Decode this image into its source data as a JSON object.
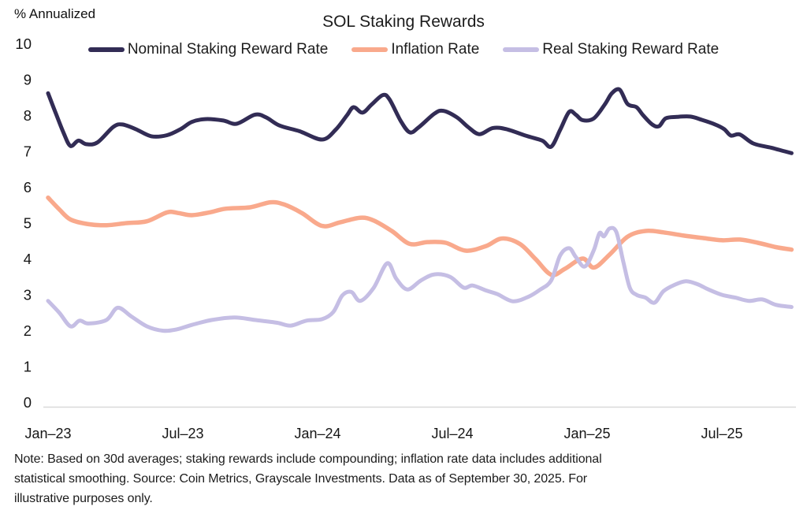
{
  "header": {
    "y_axis_unit": "% Annualized",
    "title": "SOL Staking Rewards"
  },
  "legend": [
    {
      "label": "Nominal Staking Reward Rate",
      "color": "#322C55"
    },
    {
      "label": "Inflation Rate",
      "color": "#F9A98C"
    },
    {
      "label": "Real Staking Reward Rate",
      "color": "#C5BEE4"
    }
  ],
  "chart_data": {
    "type": "line",
    "title": "SOL Staking Rewards",
    "ylabel": "% Annualized",
    "grid": false,
    "legend_position": "top",
    "y_axis": {
      "min": 0,
      "max": 10,
      "tick_step": 1,
      "tick_labels": [
        "0",
        "1",
        "2",
        "3",
        "4",
        "5",
        "6",
        "7",
        "8",
        "9",
        "10"
      ]
    },
    "x_axis": {
      "unit": "months since Jan-2023",
      "range_months": [
        0,
        33.1
      ],
      "tick_months": [
        0,
        6,
        12,
        18,
        24,
        30
      ],
      "tick_labels": [
        "Jan–23",
        "Jul–23",
        "Jan–24",
        "Jul–24",
        "Jan–25",
        "Jul–25"
      ]
    },
    "series": [
      {
        "key": "inflation",
        "name": "Inflation Rate",
        "color": "#F9A98C",
        "stroke_width": 5.5,
        "points": [
          [
            0,
            5.71
          ],
          [
            0.5,
            5.38
          ],
          [
            1,
            5.1
          ],
          [
            1.8,
            4.97
          ],
          [
            2.6,
            4.94
          ],
          [
            3.5,
            5.0
          ],
          [
            4.4,
            5.05
          ],
          [
            5.3,
            5.3
          ],
          [
            5.8,
            5.28
          ],
          [
            6.4,
            5.22
          ],
          [
            7.2,
            5.3
          ],
          [
            7.9,
            5.4
          ],
          [
            9,
            5.44
          ],
          [
            9.9,
            5.58
          ],
          [
            10.5,
            5.52
          ],
          [
            11.3,
            5.28
          ],
          [
            12.2,
            4.92
          ],
          [
            13,
            5.02
          ],
          [
            13.9,
            5.15
          ],
          [
            14.5,
            5.07
          ],
          [
            15.3,
            4.78
          ],
          [
            16.1,
            4.42
          ],
          [
            16.9,
            4.47
          ],
          [
            17.7,
            4.45
          ],
          [
            18.6,
            4.23
          ],
          [
            19.5,
            4.36
          ],
          [
            20.2,
            4.57
          ],
          [
            21,
            4.42
          ],
          [
            21.7,
            4.0
          ],
          [
            22.4,
            3.56
          ],
          [
            23,
            3.72
          ],
          [
            23.8,
            4.01
          ],
          [
            24.3,
            3.76
          ],
          [
            25,
            4.12
          ],
          [
            25.8,
            4.62
          ],
          [
            26.6,
            4.78
          ],
          [
            27.4,
            4.74
          ],
          [
            28.3,
            4.65
          ],
          [
            29.2,
            4.58
          ],
          [
            30,
            4.52
          ],
          [
            30.8,
            4.54
          ],
          [
            31.6,
            4.45
          ],
          [
            32.4,
            4.33
          ],
          [
            33.1,
            4.26
          ]
        ]
      },
      {
        "key": "real",
        "name": "Real Staking Reward Rate",
        "color": "#C5BEE4",
        "stroke_width": 5,
        "points": [
          [
            0,
            2.83
          ],
          [
            0.5,
            2.5
          ],
          [
            1,
            2.12
          ],
          [
            1.4,
            2.28
          ],
          [
            1.8,
            2.2
          ],
          [
            2.6,
            2.3
          ],
          [
            3.1,
            2.64
          ],
          [
            3.7,
            2.4
          ],
          [
            4.4,
            2.12
          ],
          [
            5.1,
            2.0
          ],
          [
            5.7,
            2.03
          ],
          [
            6.4,
            2.16
          ],
          [
            7.3,
            2.3
          ],
          [
            8.3,
            2.37
          ],
          [
            9.2,
            2.3
          ],
          [
            10.2,
            2.22
          ],
          [
            10.8,
            2.14
          ],
          [
            11.5,
            2.28
          ],
          [
            12.2,
            2.32
          ],
          [
            12.7,
            2.52
          ],
          [
            13.1,
            2.98
          ],
          [
            13.5,
            3.08
          ],
          [
            13.9,
            2.83
          ],
          [
            14.5,
            3.2
          ],
          [
            15.1,
            3.88
          ],
          [
            15.5,
            3.45
          ],
          [
            16,
            3.15
          ],
          [
            16.6,
            3.4
          ],
          [
            17.2,
            3.57
          ],
          [
            17.9,
            3.5
          ],
          [
            18.5,
            3.2
          ],
          [
            18.9,
            3.26
          ],
          [
            19.5,
            3.12
          ],
          [
            20,
            3.02
          ],
          [
            20.7,
            2.82
          ],
          [
            21.4,
            2.95
          ],
          [
            21.9,
            3.14
          ],
          [
            22.4,
            3.4
          ],
          [
            22.8,
            4.1
          ],
          [
            23.2,
            4.3
          ],
          [
            23.5,
            4.05
          ],
          [
            23.9,
            3.79
          ],
          [
            24.3,
            4.25
          ],
          [
            24.55,
            4.72
          ],
          [
            24.75,
            4.63
          ],
          [
            25,
            4.85
          ],
          [
            25.3,
            4.75
          ],
          [
            25.6,
            3.95
          ],
          [
            25.9,
            3.2
          ],
          [
            26.2,
            3.0
          ],
          [
            26.6,
            2.92
          ],
          [
            27,
            2.78
          ],
          [
            27.4,
            3.1
          ],
          [
            27.9,
            3.28
          ],
          [
            28.4,
            3.38
          ],
          [
            28.9,
            3.3
          ],
          [
            29.4,
            3.15
          ],
          [
            30,
            3.0
          ],
          [
            30.6,
            2.92
          ],
          [
            31.2,
            2.83
          ],
          [
            31.8,
            2.87
          ],
          [
            32.4,
            2.72
          ],
          [
            33.1,
            2.66
          ]
        ]
      },
      {
        "key": "nominal",
        "name": "Nominal Staking Reward Rate",
        "color": "#322C55",
        "stroke_width": 5,
        "points": [
          [
            0,
            8.62
          ],
          [
            0.35,
            8.05
          ],
          [
            0.7,
            7.5
          ],
          [
            1,
            7.15
          ],
          [
            1.35,
            7.3
          ],
          [
            1.7,
            7.2
          ],
          [
            2.2,
            7.25
          ],
          [
            2.9,
            7.68
          ],
          [
            3.3,
            7.75
          ],
          [
            3.9,
            7.62
          ],
          [
            4.6,
            7.42
          ],
          [
            5.3,
            7.45
          ],
          [
            5.9,
            7.62
          ],
          [
            6.4,
            7.82
          ],
          [
            7,
            7.9
          ],
          [
            7.8,
            7.86
          ],
          [
            8.4,
            7.77
          ],
          [
            9.2,
            8.02
          ],
          [
            9.7,
            7.95
          ],
          [
            10.3,
            7.72
          ],
          [
            11.2,
            7.56
          ],
          [
            12.2,
            7.33
          ],
          [
            12.8,
            7.6
          ],
          [
            13.3,
            8.0
          ],
          [
            13.6,
            8.23
          ],
          [
            14,
            8.08
          ],
          [
            14.4,
            8.3
          ],
          [
            14.9,
            8.57
          ],
          [
            15.2,
            8.45
          ],
          [
            15.7,
            7.85
          ],
          [
            16.1,
            7.53
          ],
          [
            16.5,
            7.67
          ],
          [
            17.2,
            8.05
          ],
          [
            17.6,
            8.13
          ],
          [
            18.2,
            7.95
          ],
          [
            18.7,
            7.68
          ],
          [
            19.2,
            7.48
          ],
          [
            19.8,
            7.65
          ],
          [
            20.4,
            7.62
          ],
          [
            21.3,
            7.43
          ],
          [
            22,
            7.3
          ],
          [
            22.4,
            7.13
          ],
          [
            22.8,
            7.6
          ],
          [
            23.2,
            8.1
          ],
          [
            23.5,
            8.02
          ],
          [
            23.8,
            7.87
          ],
          [
            24.3,
            7.92
          ],
          [
            24.8,
            8.32
          ],
          [
            25.1,
            8.62
          ],
          [
            25.45,
            8.72
          ],
          [
            25.8,
            8.32
          ],
          [
            26.2,
            8.23
          ],
          [
            26.5,
            8.0
          ],
          [
            26.9,
            7.75
          ],
          [
            27.2,
            7.7
          ],
          [
            27.5,
            7.92
          ],
          [
            28,
            7.96
          ],
          [
            28.6,
            7.97
          ],
          [
            29.1,
            7.88
          ],
          [
            29.7,
            7.75
          ],
          [
            30.1,
            7.62
          ],
          [
            30.4,
            7.44
          ],
          [
            30.8,
            7.47
          ],
          [
            31.4,
            7.22
          ],
          [
            32.2,
            7.1
          ],
          [
            32.8,
            7.0
          ],
          [
            33.1,
            6.95
          ]
        ]
      }
    ]
  },
  "note": {
    "lines": [
      "Note: Based on 30d averages; staking rewards include compounding; inflation rate data includes additional",
      "statistical smoothing. Source: Coin Metrics, Grayscale Investments. Data as of September 30, 2025. For",
      "illustrative purposes only."
    ]
  }
}
